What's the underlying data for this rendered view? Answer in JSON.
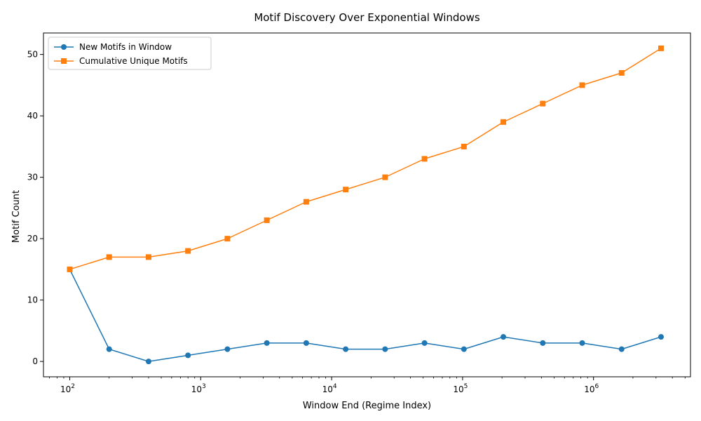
{
  "chart_data": {
    "type": "line",
    "title": "Motif Discovery Over Exponential Windows",
    "xlabel": "Window End (Regime Index)",
    "ylabel": "Motif Count",
    "x_scale": "log",
    "xlim": [
      63,
      5500000
    ],
    "ylim": [
      -2.5,
      53.5
    ],
    "x": [
      100,
      200,
      400,
      800,
      1600,
      3200,
      6400,
      12800,
      25600,
      51200,
      102400,
      204800,
      409600,
      819200,
      1638400,
      3276800
    ],
    "series": [
      {
        "name": "New Motifs in Window",
        "color": "#1f77b4",
        "marker": "circle",
        "values": [
          15,
          2,
          0,
          1,
          2,
          3,
          3,
          2,
          2,
          3,
          2,
          4,
          3,
          3,
          2,
          4
        ]
      },
      {
        "name": "Cumulative Unique Motifs",
        "color": "#ff7f0e",
        "marker": "square",
        "values": [
          15,
          17,
          17,
          18,
          20,
          23,
          26,
          28,
          30,
          33,
          35,
          39,
          42,
          45,
          47,
          51
        ]
      }
    ],
    "x_ticks": [
      {
        "value": 100,
        "base": "10",
        "exp": "2"
      },
      {
        "value": 1000,
        "base": "10",
        "exp": "3"
      },
      {
        "value": 10000,
        "base": "10",
        "exp": "4"
      },
      {
        "value": 100000,
        "base": "10",
        "exp": "5"
      },
      {
        "value": 1000000,
        "base": "10",
        "exp": "6"
      }
    ],
    "y_ticks": [
      "0",
      "10",
      "20",
      "30",
      "40",
      "50"
    ],
    "grid": false,
    "legend_position": "top-left"
  }
}
